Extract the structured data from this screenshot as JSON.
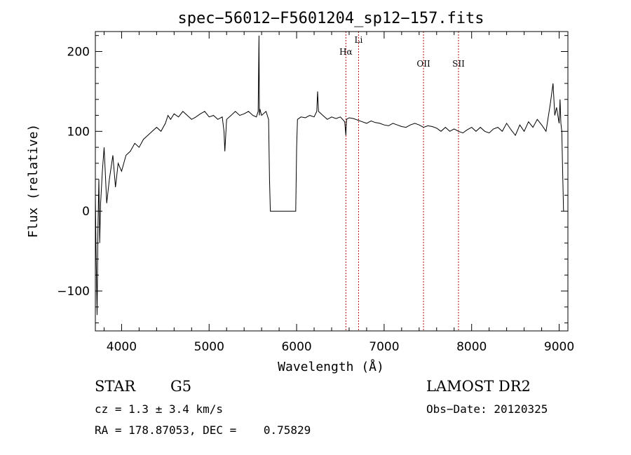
{
  "chart_data": {
    "type": "line",
    "title": "spec−56012−F5601204_sp12−157.fits",
    "xlabel": "Wavelength (Å)",
    "ylabel": "Flux (relative)",
    "xlim": [
      3700,
      9100
    ],
    "ylim": [
      -150,
      225
    ],
    "xticks": [
      4000,
      5000,
      6000,
      7000,
      8000,
      9000
    ],
    "yticks": [
      -100,
      0,
      100,
      200
    ],
    "ytick_labels": [
      "−100",
      "0",
      "100",
      "200"
    ],
    "grid": false,
    "series": [
      {
        "x": [
          3700,
          3710,
          3720,
          3730,
          3740,
          3750,
          3760,
          3780,
          3800,
          3830,
          3860,
          3900,
          3930,
          3960,
          4000,
          4050,
          4100,
          4150,
          4200,
          4250,
          4300,
          4350,
          4400,
          4450,
          4500,
          4530,
          4560,
          4600,
          4650,
          4700,
          4750,
          4800,
          4850,
          4900,
          4950,
          5000,
          5050,
          5100,
          5150,
          5170,
          5180,
          5200,
          5250,
          5300,
          5350,
          5400,
          5450,
          5500,
          5540,
          5560,
          5570,
          5575,
          5580,
          5600,
          5650,
          5680,
          5690,
          5700,
          5800,
          5900,
          5990,
          6000,
          6010,
          6050,
          6100,
          6150,
          6200,
          6230,
          6240,
          6250,
          6300,
          6350,
          6400,
          6450,
          6500,
          6550,
          6563,
          6570,
          6600,
          6650,
          6700,
          6750,
          6800,
          6850,
          6900,
          6950,
          7000,
          7050,
          7100,
          7150,
          7200,
          7250,
          7300,
          7350,
          7400,
          7450,
          7500,
          7550,
          7600,
          7650,
          7700,
          7750,
          7800,
          7850,
          7900,
          7950,
          8000,
          8050,
          8100,
          8150,
          8200,
          8250,
          8300,
          8350,
          8400,
          8450,
          8500,
          8550,
          8600,
          8650,
          8700,
          8750,
          8800,
          8850,
          8900,
          8930,
          8950,
          8970,
          9000,
          9010,
          9020,
          9030,
          9040,
          9050
        ],
        "y": [
          20,
          -60,
          -130,
          -20,
          40,
          -40,
          10,
          50,
          80,
          10,
          40,
          70,
          30,
          60,
          50,
          70,
          75,
          85,
          80,
          90,
          95,
          100,
          105,
          100,
          110,
          120,
          115,
          122,
          118,
          125,
          120,
          115,
          118,
          122,
          125,
          118,
          120,
          115,
          118,
          100,
          75,
          115,
          120,
          125,
          120,
          122,
          125,
          120,
          118,
          125,
          220,
          120,
          128,
          120,
          125,
          115,
          40,
          0,
          0,
          0,
          0,
          80,
          115,
          118,
          117,
          120,
          118,
          125,
          150,
          125,
          120,
          115,
          118,
          116,
          118,
          112,
          95,
          115,
          117,
          116,
          114,
          112,
          110,
          113,
          111,
          110,
          108,
          107,
          110,
          108,
          106,
          105,
          108,
          110,
          108,
          105,
          107,
          106,
          104,
          100,
          105,
          100,
          103,
          100,
          98,
          102,
          105,
          100,
          105,
          100,
          98,
          103,
          105,
          100,
          110,
          102,
          95,
          108,
          100,
          112,
          105,
          115,
          108,
          100,
          135,
          160,
          120,
          130,
          110,
          140,
          110,
          100,
          50,
          0
        ]
      }
    ],
    "annotations": [
      {
        "label": "Hα",
        "x": 6563
      },
      {
        "label": "Li",
        "x": 6708
      },
      {
        "label": "OII",
        "x": 7450
      },
      {
        "label": "SII",
        "x": 7850
      }
    ]
  },
  "info": {
    "object_class": "STAR",
    "subclass": "G5",
    "survey": "LAMOST DR2",
    "redshift": "cz = 1.3 ± 3.4 km/s",
    "obs_date": "Obs−Date: 20120325",
    "coords": "RA = 178.87053, DEC =    0.75829"
  },
  "colors": {
    "spectrum": "#000000",
    "marker_lines": "#b01010"
  }
}
